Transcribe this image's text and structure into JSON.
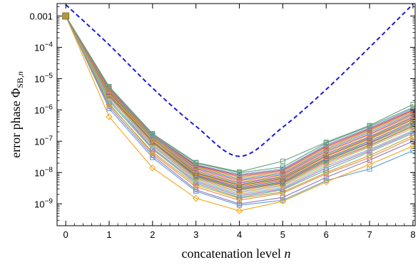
{
  "chart_data": {
    "type": "line",
    "xlabel": "concatenation level",
    "xlabel_var": "n",
    "ylabel": "error phase",
    "ylabel_symbol": "Φ",
    "ylabel_sub": "SB,",
    "ylabel_sub_var": "n",
    "y_scale": "log",
    "x": [
      0,
      1,
      2,
      3,
      4,
      5,
      6,
      7,
      8
    ],
    "xlim": [
      -0.2,
      8.05
    ],
    "ylim": [
      2e-10,
      0.0025
    ],
    "x_ticks": [
      "0",
      "1",
      "2",
      "3",
      "4",
      "5",
      "6",
      "7",
      "8"
    ],
    "y_ticks": [
      {
        "value": 0.001,
        "base": "0.001",
        "exp": ""
      },
      {
        "value": 0.0001,
        "base": "10",
        "exp": "−4"
      },
      {
        "value": 1e-05,
        "base": "10",
        "exp": "−5"
      },
      {
        "value": 1e-06,
        "base": "10",
        "exp": "−6"
      },
      {
        "value": 1e-07,
        "base": "10",
        "exp": "−7"
      },
      {
        "value": 1e-08,
        "base": "10",
        "exp": "−8"
      },
      {
        "value": 1e-09,
        "base": "10",
        "exp": "−9"
      }
    ],
    "grid": false,
    "legend": "none",
    "bound": {
      "style": "dashed",
      "color": "#1a1ad6",
      "x": [
        0,
        1,
        2,
        3,
        4,
        5,
        6,
        7,
        8
      ],
      "y": [
        0.0023,
        0.00012,
        5e-06,
        3e-07,
        3.3e-08,
        2.8e-07,
        4.5e-06,
        0.0001,
        0.0024
      ]
    },
    "series": [
      {
        "color": "#5e9fd0",
        "marker": "square",
        "values": [
          0.001,
          1.1e-06,
          3e-08,
          2.5e-09,
          9e-10,
          1.3e-09,
          5.5e-09,
          1.3e-08,
          5e-08
        ]
      },
      {
        "color": "#f2a51a",
        "marker": "diamond",
        "values": [
          0.001,
          6e-07,
          1.4e-08,
          1.5e-09,
          6e-10,
          1.2e-09,
          5e-09,
          1.8e-08,
          7e-08
        ]
      },
      {
        "color": "#8e79c0",
        "marker": "square",
        "values": [
          0.001,
          1.3e-06,
          3.5e-08,
          2.8e-09,
          1e-09,
          1.6e-09,
          7e-09,
          2.5e-08,
          1e-07
        ]
      },
      {
        "color": "#e38b55",
        "marker": "circle",
        "values": [
          0.001,
          1.6e-06,
          4e-08,
          3.5e-09,
          1.3e-09,
          2.2e-09,
          9e-09,
          3e-08,
          1.3e-07
        ]
      },
      {
        "color": "#c9a227",
        "marker": "diamond",
        "values": [
          0.001,
          1.5e-06,
          4.5e-08,
          4e-09,
          1.5e-09,
          2.4e-09,
          1e-08,
          3.5e-08,
          1.5e-07
        ]
      },
      {
        "color": "#5bb59a",
        "marker": "square",
        "values": [
          0.001,
          1.9e-06,
          5.5e-08,
          4.5e-09,
          1.6e-09,
          2.8e-09,
          1.2e-08,
          4.5e-08,
          1.8e-07
        ]
      },
      {
        "color": "#b86fb0",
        "marker": "triangle",
        "values": [
          0.001,
          2.2e-06,
          6e-08,
          5e-09,
          1.8e-09,
          3e-09,
          1.4e-08,
          5e-08,
          2e-07
        ]
      },
      {
        "color": "#7fb3d5",
        "marker": "square",
        "values": [
          0.001,
          2.1e-06,
          7e-08,
          5.5e-09,
          2e-09,
          3.3e-09,
          1.6e-08,
          5.5e-08,
          2.2e-07
        ]
      },
      {
        "color": "#e0c04a",
        "marker": "diamond",
        "values": [
          0.001,
          2.5e-06,
          7.5e-08,
          6e-09,
          2.2e-09,
          3.7e-09,
          1.8e-08,
          6.5e-08,
          2.6e-07
        ]
      },
      {
        "color": "#9aa7c7",
        "marker": "circle",
        "values": [
          0.001,
          2.6e-06,
          8e-08,
          6.5e-09,
          2.4e-09,
          4e-09,
          2e-08,
          7e-08,
          2.9e-07
        ]
      },
      {
        "color": "#d9762f",
        "marker": "square",
        "values": [
          0.001,
          2.8e-06,
          9e-08,
          7e-09,
          2.7e-09,
          4.4e-09,
          2.2e-08,
          7.5e-08,
          3.1e-07
        ]
      },
      {
        "color": "#6aa84f",
        "marker": "triangle",
        "values": [
          0.001,
          3e-06,
          9.5e-08,
          7.5e-09,
          2.9e-09,
          4.7e-09,
          2.4e-08,
          8.5e-08,
          3.4e-07
        ]
      },
      {
        "color": "#a55a8a",
        "marker": "diamond",
        "values": [
          0.001,
          3.2e-06,
          1e-07,
          8e-09,
          3.1e-09,
          5e-09,
          2.6e-08,
          9e-08,
          3.8e-07
        ]
      },
      {
        "color": "#4f81bd",
        "marker": "square",
        "values": [
          0.001,
          3.4e-06,
          1.1e-07,
          8.5e-09,
          3.4e-09,
          5.5e-09,
          2.8e-08,
          1e-07,
          4.2e-07
        ]
      },
      {
        "color": "#f4b942",
        "marker": "circle",
        "values": [
          0.001,
          3.3e-06,
          1.1e-07,
          9e-09,
          3.6e-09,
          5.8e-09,
          3e-08,
          1.1e-07,
          4.6e-07
        ]
      },
      {
        "color": "#c05050",
        "marker": "square",
        "values": [
          0.001,
          3.6e-06,
          1.2e-07,
          9.5e-09,
          3.9e-09,
          6.2e-09,
          3.3e-08,
          1.2e-07,
          5e-07
        ]
      },
      {
        "color": "#7a9e3b",
        "marker": "diamond",
        "values": [
          0.001,
          3.8e-06,
          1.2e-07,
          1e-08,
          4.2e-09,
          6.7e-09,
          3.6e-08,
          1.3e-07,
          5.5e-07
        ]
      },
      {
        "color": "#8c6bb1",
        "marker": "triangle",
        "values": [
          0.001,
          4e-06,
          1.3e-07,
          1.1e-08,
          4.6e-09,
          7.2e-09,
          4e-08,
          1.4e-07,
          6e-07
        ]
      },
      {
        "color": "#e6a23c",
        "marker": "square",
        "values": [
          0.001,
          4.1e-06,
          1.3e-07,
          1.2e-08,
          5e-09,
          7.8e-09,
          4.4e-08,
          1.6e-07,
          6.6e-07
        ]
      },
      {
        "color": "#d65a84",
        "marker": "circle",
        "values": [
          0.001,
          4.3e-06,
          1.4e-07,
          1.3e-08,
          5.5e-09,
          8.5e-09,
          4.8e-08,
          1.7e-07,
          7.2e-07
        ]
      },
      {
        "color": "#5a9bd4",
        "marker": "square",
        "values": [
          0.001,
          4.5e-06,
          1.4e-07,
          1.4e-08,
          6e-09,
          9.2e-09,
          5.3e-08,
          1.9e-07,
          7.8e-07
        ]
      },
      {
        "color": "#c8a13a",
        "marker": "diamond",
        "values": [
          0.001,
          4.7e-06,
          1.5e-07,
          1.5e-08,
          6.6e-09,
          1e-08,
          5.8e-08,
          2.1e-07,
          8.5e-07
        ]
      },
      {
        "color": "#e06c3c",
        "marker": "square",
        "values": [
          0.001,
          4.9e-06,
          1.5e-07,
          1.6e-08,
          7.3e-09,
          1.1e-08,
          6.4e-08,
          2.3e-07,
          9.3e-07
        ]
      },
      {
        "color": "#b9476e",
        "marker": "circle",
        "values": [
          0.001,
          5e-06,
          1.6e-07,
          1.7e-08,
          8e-09,
          1.2e-08,
          7e-08,
          2.5e-07,
          1e-06
        ]
      },
      {
        "color": "#7aa2c9",
        "marker": "square",
        "values": [
          0.001,
          5.2e-06,
          1.6e-07,
          1.8e-08,
          8.7e-09,
          1.3e-08,
          7.7e-08,
          2.7e-07,
          1.1e-06
        ]
      },
      {
        "color": "#5c9f8c",
        "marker": "square",
        "values": [
          0.001,
          5.5e-06,
          1.7e-07,
          2e-08,
          9.8e-09,
          1.5e-08,
          8.7e-08,
          3e-07,
          1.2e-06
        ]
      },
      {
        "color": "#6b9e78",
        "marker": "square",
        "values": [
          0.001,
          5.6e-06,
          1.75e-07,
          2.1e-08,
          1.05e-08,
          2.3e-08,
          9.3e-08,
          3.2e-07,
          1.5e-06
        ]
      }
    ]
  }
}
